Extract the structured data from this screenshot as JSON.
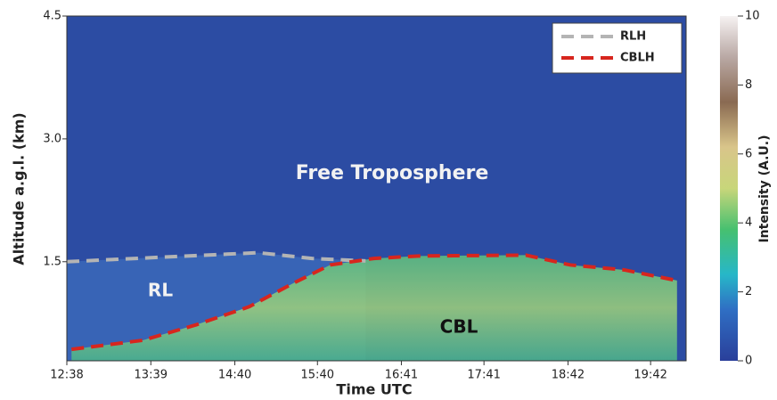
{
  "chart_data": {
    "type": "time-height",
    "xlabel": "Time UTC",
    "ylabel": "Altitude a.g.l. (km)",
    "colorbar_label": "Intensity (A.U.)",
    "xlim": [
      12.633,
      20.13
    ],
    "xticks": [
      {
        "value": 12.633,
        "label": "12:38"
      },
      {
        "value": 13.65,
        "label": "13:39"
      },
      {
        "value": 14.667,
        "label": "14:40"
      },
      {
        "value": 15.667,
        "label": "15:40"
      },
      {
        "value": 16.683,
        "label": "16:41"
      },
      {
        "value": 17.683,
        "label": "17:41"
      },
      {
        "value": 18.7,
        "label": "18:42"
      },
      {
        "value": 19.7,
        "label": "19:42"
      }
    ],
    "ylim": [
      0.29,
      4.5
    ],
    "yticks": [
      1.5,
      {
        "value": 3,
        "label": "3.0"
      },
      4.5
    ],
    "clim": [
      0,
      10
    ],
    "cticks": [
      0,
      2,
      4,
      6,
      8,
      10
    ],
    "annotations": [
      "Free Troposphere",
      "RL",
      "CBL"
    ],
    "series": [
      {
        "name": "RLH",
        "color": "#b4b4b4",
        "x": [
          12.633,
          13.98,
          14.95,
          15.6,
          16.25
        ],
        "values": [
          1.5,
          1.565,
          1.61,
          1.54,
          1.51
        ]
      },
      {
        "name": "CBLH",
        "color": "#d7261e",
        "x": [
          12.69,
          13.55,
          14.2,
          14.84,
          15.38,
          15.82,
          16.35,
          16.89,
          18.19,
          18.73,
          19.38,
          20.02
        ],
        "values": [
          0.43,
          0.54,
          0.73,
          0.95,
          1.24,
          1.46,
          1.54,
          1.57,
          1.58,
          1.46,
          1.4,
          1.27
        ]
      }
    ]
  }
}
